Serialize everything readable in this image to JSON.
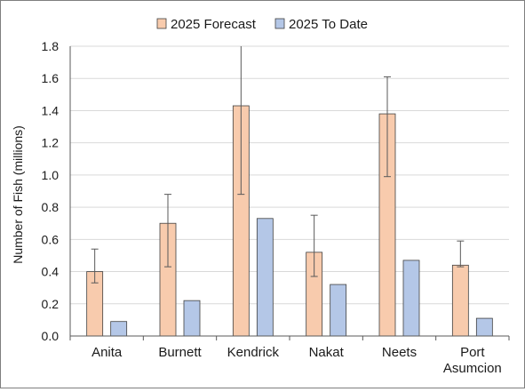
{
  "chart_data": {
    "type": "bar",
    "categories": [
      "Anita",
      "Burnett",
      "Kendrick",
      "Nakat",
      "Neets",
      "Port Asumcion"
    ],
    "category_lines": [
      [
        "Anita"
      ],
      [
        "Burnett"
      ],
      [
        "Kendrick"
      ],
      [
        "Nakat"
      ],
      [
        "Neets"
      ],
      [
        "Port",
        "Asumcion"
      ]
    ],
    "series": [
      {
        "name": "2025 Forecast",
        "color": "#f8cbad",
        "values": [
          0.4,
          0.7,
          1.43,
          0.52,
          1.38,
          0.44
        ],
        "error_low": [
          0.33,
          0.43,
          0.88,
          0.37,
          0.99,
          0.43
        ],
        "error_high": [
          0.54,
          0.88,
          1.8,
          0.75,
          1.61,
          0.59
        ]
      },
      {
        "name": "2025 To Date",
        "color": "#b4c7e7",
        "values": [
          0.09,
          0.22,
          0.73,
          0.32,
          0.47,
          0.11
        ]
      }
    ],
    "ylabel": "Number of Fish (millions)",
    "xlabel": "",
    "ylim": [
      0,
      1.8
    ],
    "yticks": [
      "0.0",
      "0.2",
      "0.4",
      "0.6",
      "0.8",
      "1.0",
      "1.2",
      "1.4",
      "1.6",
      "1.8"
    ],
    "grid": true,
    "legend_position": "top-center"
  }
}
